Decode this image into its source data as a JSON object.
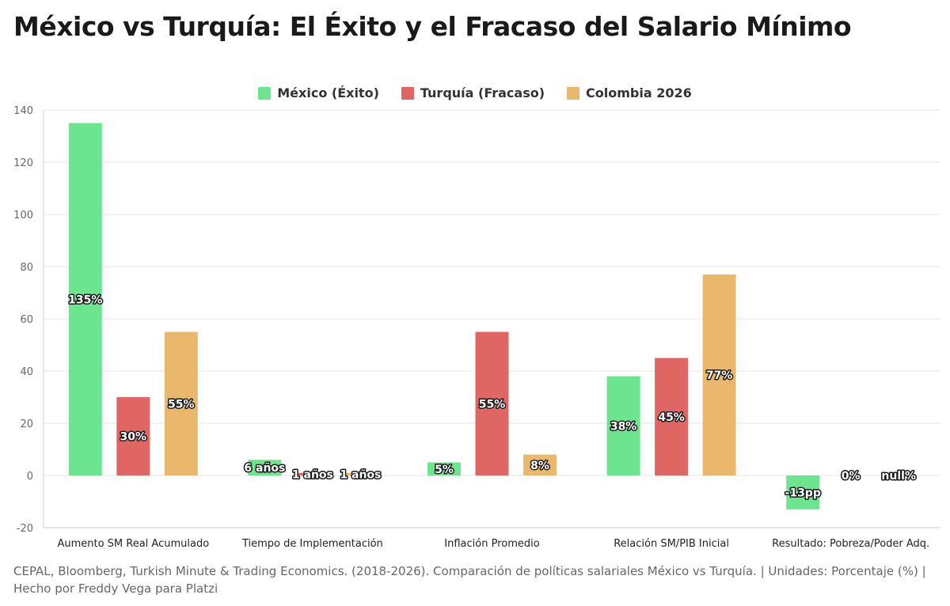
{
  "title": "México vs Turquía: El Éxito y el Fracaso del Salario Mínimo",
  "source": "CEPAL, Bloomberg, Turkish Minute & Trading Economics. (2018-2026). Comparación de políticas salariales México vs Turquía. | Unidades: Porcentaje (%) | Hecho por Freddy Vega para Platzi",
  "chart_data": {
    "type": "bar",
    "title": "México vs Turquía: El Éxito y el Fracaso del Salario Mínimo",
    "categories": [
      "Aumento SM Real Acumulado",
      "Tiempo de Implementación",
      "Inflación Promedio",
      "Relación SM/PIB Inicial",
      "Resultado: Pobreza/Poder Adq."
    ],
    "series": [
      {
        "name": "México (Éxito)",
        "color": "#6ce58e",
        "values": [
          135,
          6,
          5,
          38,
          -13
        ],
        "labels": [
          "135%",
          "6 años",
          "5%",
          "38%",
          "-13pp"
        ]
      },
      {
        "name": "Turquía (Fracaso)",
        "color": "#e06664",
        "values": [
          30,
          1,
          55,
          45,
          0
        ],
        "labels": [
          "30%",
          "1 años",
          "55%",
          "45%",
          "0%"
        ]
      },
      {
        "name": "Colombia 2026",
        "color": "#eab86c",
        "values": [
          55,
          1,
          8,
          77,
          null
        ],
        "labels": [
          "55%",
          "1 años",
          "8%",
          "77%",
          "null%"
        ]
      }
    ],
    "ylim": [
      -20,
      140
    ],
    "yticks": [
      -20,
      0,
      20,
      40,
      60,
      80,
      100,
      120,
      140
    ],
    "xlabel": "",
    "ylabel": "",
    "grid": true,
    "legend": "top-center"
  }
}
